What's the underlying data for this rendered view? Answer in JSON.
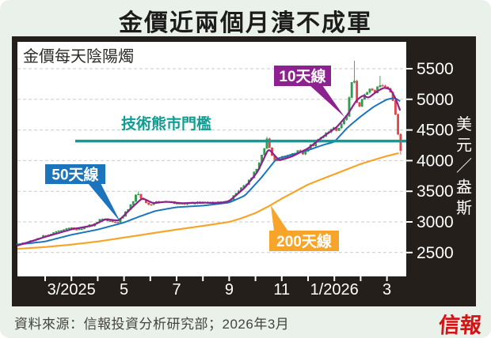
{
  "title": "金價近兩個月潰不成軍",
  "footer": {
    "source": "資料來源：信報投資分析研究部；2026年3月",
    "logo": "信報"
  },
  "colors": {
    "page_bg": "#eaf1ea",
    "frame": "#241f1b",
    "plot_bg": "#ffffff",
    "grid": "#c9c9c9",
    "axis_text": "#ffffff",
    "candle_up": "#2ba24e",
    "candle_up_stroke": "#1d8a3d",
    "candle_down": "#e44747",
    "candle_down_stroke": "#c93a3a",
    "ma10": "#8e2190",
    "ma50": "#1c75bc",
    "ma200": "#f7a52a",
    "threshold": "#0f9c92",
    "plot_label": "#2b2b28",
    "logo_red": "#d31414"
  },
  "chart_data": {
    "type": "candlestick",
    "title": "金價近兩個月潰不成軍",
    "plot_label": "金價每天陰陽燭",
    "time_unit_note": "t = months since 2/2025 (t:0=2/2025, 13=3/2026)",
    "y_axis": {
      "unit_vertical": "美元／盎斯",
      "ticks": [
        5500,
        5000,
        4500,
        4000,
        3500,
        3000,
        2500
      ],
      "visible_range": [
        2500,
        5500
      ]
    },
    "x_axis": {
      "minor_ticks_t": [
        0,
        1,
        2,
        3,
        4,
        5,
        6,
        7,
        8,
        9,
        10,
        11,
        12,
        13
      ],
      "labels": [
        {
          "t": 1,
          "label": "3/2025"
        },
        {
          "t": 3,
          "label": "5"
        },
        {
          "t": 5,
          "label": "7"
        },
        {
          "t": 7,
          "label": "9"
        },
        {
          "t": 9,
          "label": "11"
        },
        {
          "t": 11,
          "label": "1/2026"
        },
        {
          "t": 13,
          "label": "3"
        }
      ]
    },
    "threshold": {
      "label": "技術熊市門檻",
      "value": 4320
    },
    "callouts": [
      {
        "key": "ma10",
        "label": "10天線"
      },
      {
        "key": "ma50",
        "label": "50天線"
      },
      {
        "key": "ma200",
        "label": "200天線"
      }
    ],
    "series": {
      "price": {
        "name": "金價每天陰陽燭",
        "anchors": [
          [
            -1.05,
            2640
          ],
          [
            -0.7,
            2670
          ],
          [
            -0.4,
            2705
          ],
          [
            -0.1,
            2760
          ],
          [
            0.3,
            2820
          ],
          [
            0.7,
            2875
          ],
          [
            1.0,
            2900
          ],
          [
            1.25,
            2880
          ],
          [
            1.6,
            2930
          ],
          [
            1.85,
            2955
          ],
          [
            2.1,
            3060
          ],
          [
            2.4,
            3030
          ],
          [
            2.75,
            2985
          ],
          [
            3.1,
            3170
          ],
          [
            3.3,
            3310
          ],
          [
            3.5,
            3470
          ],
          [
            3.72,
            3350
          ],
          [
            3.95,
            3260
          ],
          [
            4.2,
            3320
          ],
          [
            4.6,
            3340
          ],
          [
            5.0,
            3295
          ],
          [
            5.5,
            3310
          ],
          [
            6.0,
            3320
          ],
          [
            6.5,
            3305
          ],
          [
            7.0,
            3345
          ],
          [
            7.4,
            3515
          ],
          [
            7.8,
            3700
          ],
          [
            8.1,
            3920
          ],
          [
            8.45,
            4350
          ],
          [
            8.7,
            4000
          ],
          [
            9.0,
            4045
          ],
          [
            9.35,
            4085
          ],
          [
            9.6,
            4150
          ],
          [
            9.8,
            4090
          ],
          [
            10.0,
            4210
          ],
          [
            10.3,
            4290
          ],
          [
            10.6,
            4420
          ],
          [
            10.9,
            4535
          ],
          [
            11.1,
            4500
          ],
          [
            11.45,
            4700
          ],
          [
            11.72,
            5440
          ],
          [
            11.9,
            4830
          ],
          [
            12.15,
            5080
          ],
          [
            12.35,
            5165
          ],
          [
            12.55,
            5115
          ],
          [
            12.75,
            5265
          ],
          [
            12.95,
            5195
          ],
          [
            13.15,
            5120
          ],
          [
            13.3,
            4860
          ],
          [
            13.42,
            4460
          ],
          [
            13.52,
            4165
          ]
        ]
      },
      "ma10": {
        "name": "10天線",
        "anchors": [
          [
            -1.05,
            2615
          ],
          [
            0,
            2755
          ],
          [
            1,
            2880
          ],
          [
            1.8,
            2940
          ],
          [
            2.3,
            3045
          ],
          [
            2.8,
            3020
          ],
          [
            3.35,
            3255
          ],
          [
            3.7,
            3390
          ],
          [
            4.1,
            3305
          ],
          [
            4.6,
            3330
          ],
          [
            5.2,
            3305
          ],
          [
            6.0,
            3315
          ],
          [
            6.6,
            3305
          ],
          [
            7.0,
            3340
          ],
          [
            7.6,
            3560
          ],
          [
            8.1,
            3830
          ],
          [
            8.5,
            4200
          ],
          [
            8.9,
            4000
          ],
          [
            9.4,
            4070
          ],
          [
            10.0,
            4200
          ],
          [
            10.6,
            4400
          ],
          [
            11.1,
            4550
          ],
          [
            11.5,
            4750
          ],
          [
            11.85,
            4990
          ],
          [
            12.1,
            5070
          ],
          [
            12.3,
            5020
          ],
          [
            12.6,
            5125
          ],
          [
            12.9,
            5195
          ],
          [
            13.15,
            5160
          ],
          [
            13.35,
            4995
          ],
          [
            13.5,
            4820
          ]
        ]
      },
      "ma50": {
        "name": "50天線",
        "anchors": [
          [
            -1.05,
            2630
          ],
          [
            0,
            2680
          ],
          [
            1,
            2790
          ],
          [
            2,
            2875
          ],
          [
            3,
            2990
          ],
          [
            3.6,
            3090
          ],
          [
            4.2,
            3180
          ],
          [
            5,
            3240
          ],
          [
            6,
            3265
          ],
          [
            7,
            3315
          ],
          [
            7.6,
            3430
          ],
          [
            8.2,
            3710
          ],
          [
            8.8,
            4030
          ],
          [
            9.4,
            4100
          ],
          [
            10,
            4170
          ],
          [
            10.6,
            4260
          ],
          [
            11,
            4305
          ],
          [
            11.5,
            4540
          ],
          [
            12,
            4720
          ],
          [
            12.5,
            4880
          ],
          [
            13,
            5000
          ],
          [
            13.3,
            5025
          ],
          [
            13.52,
            4965
          ]
        ]
      },
      "ma200": {
        "name": "200天線",
        "anchors": [
          [
            -1.05,
            2560
          ],
          [
            0,
            2590
          ],
          [
            1,
            2630
          ],
          [
            2,
            2680
          ],
          [
            3,
            2745
          ],
          [
            4,
            2810
          ],
          [
            5,
            2875
          ],
          [
            6,
            2935
          ],
          [
            7,
            3000
          ],
          [
            7.5,
            3065
          ],
          [
            8,
            3145
          ],
          [
            8.5,
            3255
          ],
          [
            9,
            3380
          ],
          [
            9.5,
            3495
          ],
          [
            10,
            3610
          ],
          [
            10.5,
            3695
          ],
          [
            11,
            3778
          ],
          [
            11.5,
            3862
          ],
          [
            12,
            3945
          ],
          [
            12.5,
            4012
          ],
          [
            13,
            4075
          ],
          [
            13.47,
            4125
          ]
        ]
      }
    },
    "wick_events": [
      {
        "t": 3.5,
        "high": 3500
      },
      {
        "t": 8.45,
        "high": 4390
      },
      {
        "t": 11.72,
        "high": 5630
      },
      {
        "t": 12.75,
        "high": 5385
      },
      {
        "t": 13.52,
        "low": 4100
      }
    ]
  }
}
